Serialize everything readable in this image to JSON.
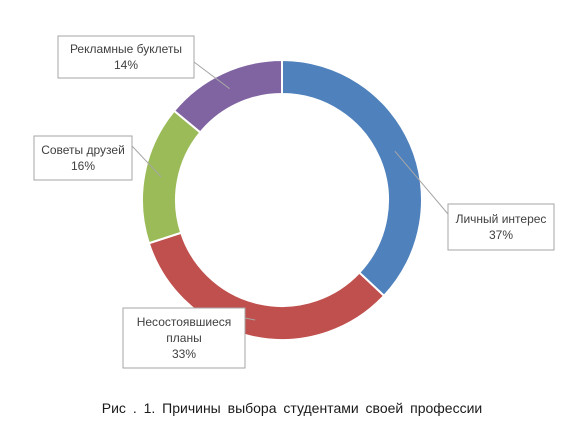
{
  "chart_data": {
    "type": "pie",
    "variant": "doughnut",
    "legend": "none",
    "slices": [
      {
        "label": "Личный интерес",
        "value": 37,
        "value_label": "37%",
        "color": "#4f81bd"
      },
      {
        "label": "Несостоявшиеся планы",
        "value": 33,
        "value_label": "33%",
        "color": "#c0504d"
      },
      {
        "label": "Советы друзей",
        "value": 16,
        "value_label": "16%",
        "color": "#9bbb59"
      },
      {
        "label": "Рекламные буклеты",
        "value": 14,
        "value_label": "14%",
        "color": "#8064a2"
      }
    ]
  },
  "caption": "Рис . 1. Причины выбора студентами своей профессии"
}
